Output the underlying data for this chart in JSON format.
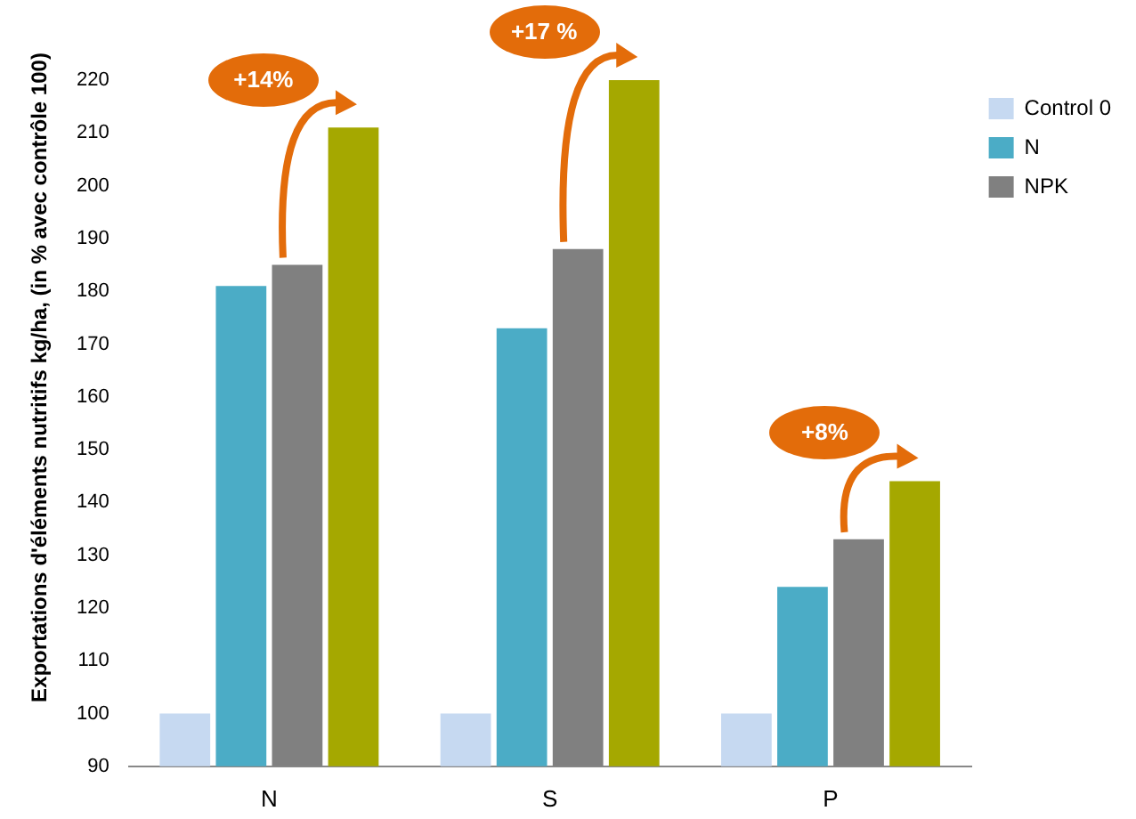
{
  "chart_data": {
    "type": "bar",
    "ylabel": "Exportations d'éléments nutritifs kg/ha, (in % avec contrôle 100)",
    "categories": [
      "N",
      "S",
      "P"
    ],
    "series": [
      {
        "name": "Control 0",
        "color": "#c6d9f1",
        "values": [
          100,
          100,
          100
        ]
      },
      {
        "name": "N",
        "color": "#4bacc6",
        "values": [
          181,
          173,
          124
        ]
      },
      {
        "name": "NPK",
        "color": "#808080",
        "values": [
          185,
          188,
          133
        ]
      },
      {
        "color": "#a5a800",
        "values": [
          211,
          220,
          144
        ]
      }
    ],
    "ylim": [
      90,
      220
    ],
    "yticks": [
      90,
      100,
      110,
      120,
      130,
      140,
      150,
      160,
      170,
      180,
      190,
      200,
      210,
      220
    ],
    "grid": false,
    "legend": "right",
    "annotations": [
      "+14%",
      "+17 %",
      "+8%"
    ]
  }
}
